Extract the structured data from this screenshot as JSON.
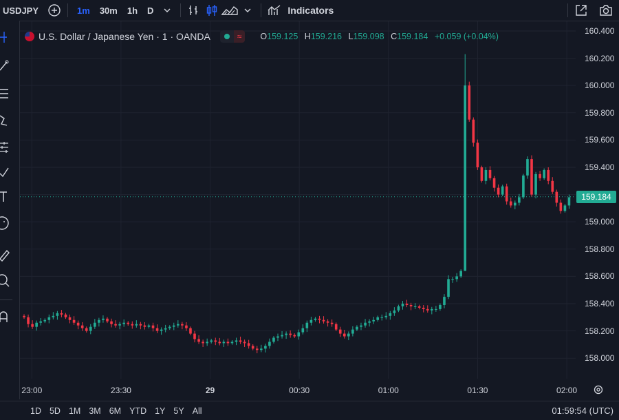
{
  "toolbar": {
    "symbol": "USDJPY",
    "timeframes": [
      {
        "label": "1m",
        "active": true
      },
      {
        "label": "30m",
        "active": false
      },
      {
        "label": "1h",
        "active": false
      },
      {
        "label": "D",
        "active": false
      }
    ],
    "indicators_label": "Indicators",
    "icons": [
      "add-symbol-icon",
      "chevron-down-icon",
      "bar-style-icon",
      "candle-style-icon",
      "area-style-icon",
      "chevron-down-icon",
      "indicators-icon",
      "fullscreen-icon",
      "camera-icon"
    ]
  },
  "legend": {
    "title": "U.S. Dollar / Japanese Yen · 1 · OANDA",
    "open_key": "O",
    "open": "159.125",
    "high_key": "H",
    "high": "159.216",
    "low_key": "L",
    "low": "159.098",
    "close_key": "C",
    "close": "159.184",
    "change": "+0.059 (+0.04%)",
    "status_icon": "wave-icon"
  },
  "price_axis": {
    "labels": [
      "160.400",
      "160.200",
      "160.000",
      "159.800",
      "159.600",
      "159.400",
      "159.200",
      "159.000",
      "158.800",
      "158.600",
      "158.400",
      "158.200",
      "158.000"
    ],
    "current": "159.184"
  },
  "time_axis": {
    "labels": [
      {
        "text": "23:00",
        "bold": false
      },
      {
        "text": "23:30",
        "bold": false
      },
      {
        "text": "29",
        "bold": true
      },
      {
        "text": "00:30",
        "bold": false
      },
      {
        "text": "01:00",
        "bold": false
      },
      {
        "text": "01:30",
        "bold": false
      },
      {
        "text": "02:00",
        "bold": false
      }
    ]
  },
  "ranges": [
    "1D",
    "5D",
    "1M",
    "3M",
    "6M",
    "YTD",
    "1Y",
    "5Y",
    "All"
  ],
  "clock": "01:59:54 (UTC)",
  "colors": {
    "up": "#22ab94",
    "down": "#f23645",
    "bg": "#141823",
    "grid": "#1f2330",
    "accent": "#2962ff"
  },
  "chart_data": {
    "type": "candlestick",
    "y_range": [
      157.9,
      160.42
    ],
    "x_range": [
      "22:56",
      "02:03"
    ],
    "last_price": 159.184,
    "candles_start": "22:56",
    "close_path": [
      158.3,
      158.25,
      158.23,
      158.26,
      158.27,
      158.28,
      158.3,
      158.31,
      158.33,
      158.32,
      158.3,
      158.28,
      158.26,
      158.24,
      158.22,
      158.2,
      158.23,
      158.26,
      158.28,
      158.29,
      158.27,
      158.25,
      158.24,
      158.25,
      158.26,
      158.25,
      158.24,
      158.25,
      158.24,
      158.23,
      158.24,
      158.22,
      158.2,
      158.21,
      158.22,
      158.23,
      158.24,
      158.25,
      158.24,
      158.22,
      158.18,
      158.14,
      158.12,
      158.11,
      158.12,
      158.13,
      158.12,
      158.11,
      158.12,
      158.11,
      158.12,
      158.13,
      158.12,
      158.11,
      158.09,
      158.07,
      158.06,
      158.07,
      158.09,
      158.12,
      158.15,
      158.16,
      158.17,
      158.18,
      158.17,
      158.16,
      158.19,
      158.22,
      158.26,
      158.28,
      158.29,
      158.28,
      158.27,
      158.26,
      158.25,
      158.21,
      158.18,
      158.16,
      158.18,
      158.21,
      158.23,
      158.24,
      158.26,
      158.27,
      158.28,
      158.3,
      158.3,
      158.31,
      158.33,
      158.35,
      158.38,
      158.4,
      158.39,
      158.38,
      158.38,
      158.37,
      158.36,
      158.35,
      158.36,
      158.36,
      158.39,
      158.45,
      158.58,
      158.58,
      158.6,
      158.64,
      160.0,
      159.75,
      159.58,
      159.4,
      159.3,
      159.38,
      159.32,
      159.25,
      159.2,
      159.26,
      159.15,
      159.12,
      159.14,
      159.18,
      159.34,
      159.46,
      159.2,
      159.35,
      159.32,
      159.38,
      159.3,
      159.22,
      159.14,
      159.08,
      159.12,
      159.18
    ],
    "wick_overrides": [
      {
        "index": 106,
        "high": 160.23,
        "low": 158.64
      }
    ]
  }
}
